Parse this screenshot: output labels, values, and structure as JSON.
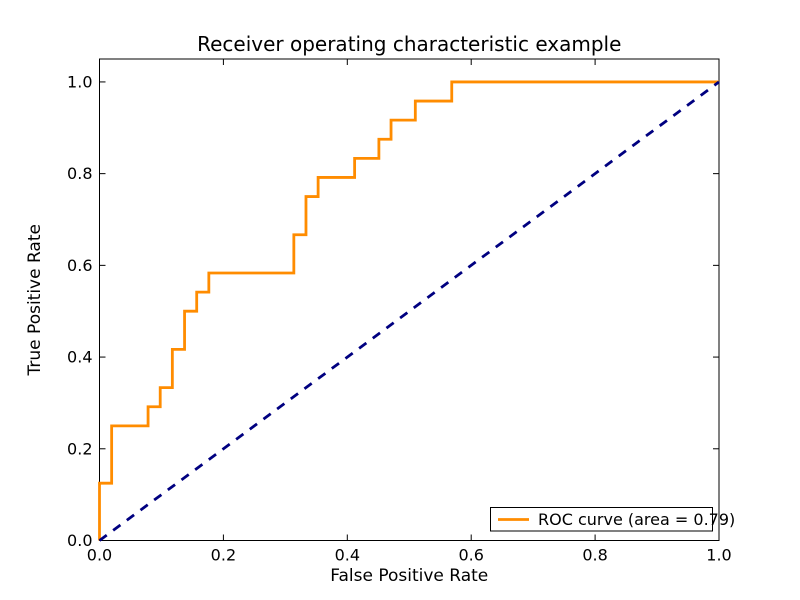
{
  "figure": {
    "background": "#ffffff"
  },
  "chart_data": {
    "type": "line",
    "title": "Receiver operating characteristic example",
    "xlabel": "False Positive Rate",
    "ylabel": "True Positive Rate",
    "xlim": [
      0.0,
      1.0
    ],
    "ylim": [
      0.0,
      1.05
    ],
    "grid": false,
    "xticks": {
      "values": [
        0.0,
        0.2,
        0.4,
        0.6,
        0.8,
        1.0
      ],
      "labels": [
        "0.0",
        "0.2",
        "0.4",
        "0.6",
        "0.8",
        "1.0"
      ]
    },
    "yticks": {
      "values": [
        0.0,
        0.2,
        0.4,
        0.6,
        0.8,
        1.0
      ],
      "labels": [
        "0.0",
        "0.2",
        "0.4",
        "0.6",
        "0.8",
        "1.0"
      ]
    },
    "series": [
      {
        "name": "roc-curve",
        "label": "ROC curve (area = 0.79)",
        "color": "#ff8c00",
        "linestyle": "solid",
        "linewidth": 2.8,
        "x": [
          0.0,
          0.0,
          0.0196,
          0.0196,
          0.0784,
          0.0784,
          0.098,
          0.098,
          0.1176,
          0.1176,
          0.1373,
          0.1373,
          0.1569,
          0.1569,
          0.1765,
          0.1765,
          0.3137,
          0.3137,
          0.3333,
          0.3333,
          0.3529,
          0.3529,
          0.4118,
          0.4118,
          0.451,
          0.451,
          0.4706,
          0.4706,
          0.5098,
          0.5098,
          0.5686,
          0.5686,
          1.0
        ],
        "y": [
          0.0,
          0.125,
          0.125,
          0.25,
          0.25,
          0.2917,
          0.2917,
          0.3333,
          0.3333,
          0.4167,
          0.4167,
          0.5,
          0.5,
          0.5417,
          0.5417,
          0.5833,
          0.5833,
          0.6667,
          0.6667,
          0.75,
          0.75,
          0.7917,
          0.7917,
          0.8333,
          0.8333,
          0.875,
          0.875,
          0.9167,
          0.9167,
          0.9583,
          0.9583,
          1.0,
          1.0
        ]
      },
      {
        "name": "chance-diagonal",
        "label": "",
        "color": "#000080",
        "linestyle": "dashed",
        "linewidth": 2.8,
        "x": [
          0.0,
          1.0
        ],
        "y": [
          0.0,
          1.0
        ]
      }
    ],
    "legend": {
      "position": "lower right",
      "entries": [
        {
          "label": "ROC curve (area = 0.79)",
          "color": "#ff8c00"
        }
      ]
    },
    "area": 0.79
  }
}
